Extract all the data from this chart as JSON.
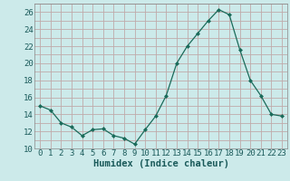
{
  "x": [
    0,
    1,
    2,
    3,
    4,
    5,
    6,
    7,
    8,
    9,
    10,
    11,
    12,
    13,
    14,
    15,
    16,
    17,
    18,
    19,
    20,
    21,
    22,
    23
  ],
  "y": [
    15.0,
    14.5,
    13.0,
    12.5,
    11.5,
    12.2,
    12.3,
    11.5,
    11.2,
    10.5,
    12.2,
    13.8,
    16.2,
    20.0,
    22.0,
    23.5,
    25.0,
    26.3,
    25.7,
    21.6,
    18.0,
    16.2,
    14.0,
    13.8
  ],
  "line_color": "#1a6b5a",
  "marker_color": "#1a6b5a",
  "bg_color": "#cceaea",
  "grid_color": "#c0aaaa",
  "xlabel": "Humidex (Indice chaleur)",
  "ylim": [
    10,
    27
  ],
  "xlim": [
    -0.5,
    23.5
  ],
  "yticks": [
    10,
    12,
    14,
    16,
    18,
    20,
    22,
    24,
    26
  ],
  "xticks": [
    0,
    1,
    2,
    3,
    4,
    5,
    6,
    7,
    8,
    9,
    10,
    11,
    12,
    13,
    14,
    15,
    16,
    17,
    18,
    19,
    20,
    21,
    22,
    23
  ],
  "xlabel_fontsize": 7.5,
  "tick_fontsize": 6.5
}
